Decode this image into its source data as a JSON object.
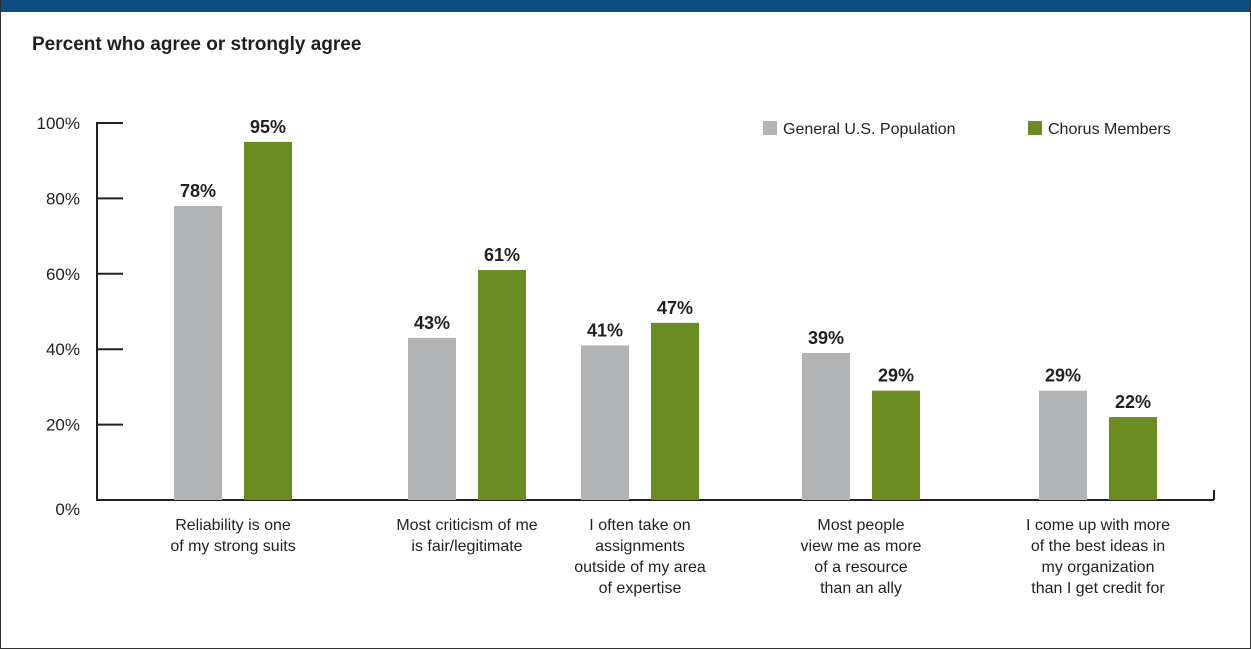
{
  "chart_data": {
    "type": "bar",
    "title": "Percent who agree or strongly agree",
    "xlabel": "",
    "ylabel": "",
    "categories": [
      [
        "Reliability is one",
        "of my strong suits"
      ],
      [
        "Most criticism of me",
        "is fair/legitimate"
      ],
      [
        "I often take on",
        "assignments",
        "outside of my area",
        "of expertise"
      ],
      [
        "Most people",
        "view me as more",
        "of a resource",
        "than an ally"
      ],
      [
        "I come up with more",
        "of the best ideas in",
        "my organization",
        "than I get credit for"
      ]
    ],
    "series": [
      {
        "name": "General U.S. Population",
        "color": "#b1b3b5",
        "values": [
          78,
          43,
          41,
          39,
          29
        ],
        "labels": [
          "78%",
          "43%",
          "41%",
          "39%",
          "29%"
        ]
      },
      {
        "name": "Chorus Members",
        "color": "#6b8c23",
        "values": [
          95,
          61,
          47,
          29,
          22
        ],
        "labels": [
          "95%",
          "61%",
          "47%",
          "29%",
          "22%"
        ]
      }
    ],
    "yticks": [
      {
        "value": 0,
        "label": "0%"
      },
      {
        "value": 20,
        "label": "20%"
      },
      {
        "value": 40,
        "label": "40%"
      },
      {
        "value": 60,
        "label": "60%"
      },
      {
        "value": 80,
        "label": "80%"
      },
      {
        "value": 100,
        "label": "100%"
      }
    ],
    "ylim": [
      0,
      100
    ],
    "grid": false,
    "legend_position": "top-right"
  },
  "colors": {
    "header_bar": "#0f4c81",
    "text": "#231f20"
  }
}
